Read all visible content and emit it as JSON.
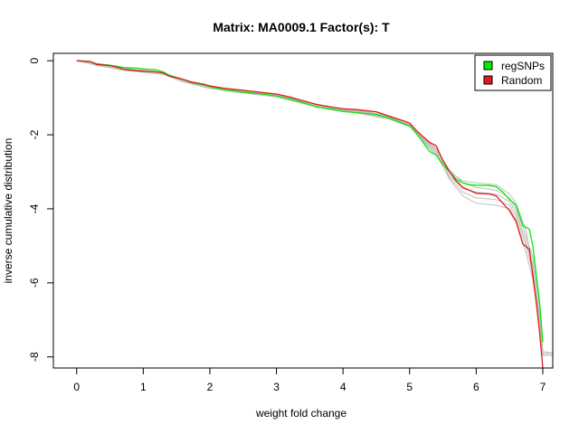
{
  "chart_data": {
    "type": "line",
    "title": "Matrix: MA0009.1 Factor(s): T",
    "xlabel": "weight fold change",
    "ylabel": "inverse cumulative distribution",
    "xlim": [
      -0.35,
      7.15
    ],
    "ylim": [
      -8.3,
      0.2
    ],
    "xticks": [
      "0",
      "1",
      "2",
      "3",
      "4",
      "5",
      "6",
      "7"
    ],
    "yticks": [
      "0",
      "-2",
      "-4",
      "-6",
      "-8"
    ],
    "legend": {
      "position": "top-right",
      "entries": [
        "regSNPs",
        "Random"
      ]
    },
    "colors": {
      "regSNPs": "#00ee00",
      "Random": "#e31a1c",
      "background_runs": "#bebebe"
    },
    "series": [
      {
        "name": "regSNPs",
        "color": "#00ee00",
        "points": [
          [
            0.0,
            0.0
          ],
          [
            0.2,
            -0.02
          ],
          [
            0.3,
            -0.08
          ],
          [
            0.5,
            -0.12
          ],
          [
            0.6,
            -0.15
          ],
          [
            0.7,
            -0.18
          ],
          [
            0.9,
            -0.2
          ],
          [
            1.0,
            -0.22
          ],
          [
            1.2,
            -0.25
          ],
          [
            1.3,
            -0.3
          ],
          [
            1.4,
            -0.4
          ],
          [
            1.6,
            -0.5
          ],
          [
            1.7,
            -0.58
          ],
          [
            1.9,
            -0.65
          ],
          [
            2.0,
            -0.7
          ],
          [
            2.2,
            -0.78
          ],
          [
            2.5,
            -0.85
          ],
          [
            2.8,
            -0.9
          ],
          [
            3.0,
            -0.95
          ],
          [
            3.2,
            -1.03
          ],
          [
            3.4,
            -1.13
          ],
          [
            3.6,
            -1.25
          ],
          [
            3.8,
            -1.3
          ],
          [
            4.0,
            -1.37
          ],
          [
            4.2,
            -1.4
          ],
          [
            4.5,
            -1.45
          ],
          [
            4.7,
            -1.55
          ],
          [
            4.9,
            -1.7
          ],
          [
            5.0,
            -1.75
          ],
          [
            5.1,
            -1.95
          ],
          [
            5.2,
            -2.2
          ],
          [
            5.3,
            -2.45
          ],
          [
            5.4,
            -2.55
          ],
          [
            5.5,
            -2.8
          ],
          [
            5.6,
            -3.0
          ],
          [
            5.7,
            -3.2
          ],
          [
            5.8,
            -3.3
          ],
          [
            5.9,
            -3.35
          ],
          [
            6.0,
            -3.36
          ],
          [
            6.2,
            -3.37
          ],
          [
            6.3,
            -3.4
          ],
          [
            6.4,
            -3.55
          ],
          [
            6.5,
            -3.75
          ],
          [
            6.6,
            -3.9
          ],
          [
            6.7,
            -4.45
          ],
          [
            6.8,
            -4.55
          ],
          [
            6.85,
            -5.0
          ],
          [
            6.9,
            -5.75
          ],
          [
            6.95,
            -6.5
          ],
          [
            7.0,
            -7.6
          ]
        ]
      },
      {
        "name": "Random",
        "color": "#e31a1c",
        "points": [
          [
            0.0,
            0.0
          ],
          [
            0.2,
            -0.02
          ],
          [
            0.3,
            -0.1
          ],
          [
            0.5,
            -0.13
          ],
          [
            0.6,
            -0.17
          ],
          [
            0.7,
            -0.23
          ],
          [
            0.9,
            -0.27
          ],
          [
            1.0,
            -0.28
          ],
          [
            1.2,
            -0.3
          ],
          [
            1.3,
            -0.33
          ],
          [
            1.4,
            -0.42
          ],
          [
            1.6,
            -0.5
          ],
          [
            1.7,
            -0.57
          ],
          [
            1.9,
            -0.63
          ],
          [
            2.0,
            -0.68
          ],
          [
            2.2,
            -0.74
          ],
          [
            2.5,
            -0.8
          ],
          [
            2.8,
            -0.86
          ],
          [
            3.0,
            -0.9
          ],
          [
            3.2,
            -0.98
          ],
          [
            3.4,
            -1.08
          ],
          [
            3.6,
            -1.18
          ],
          [
            3.8,
            -1.24
          ],
          [
            4.0,
            -1.3
          ],
          [
            4.2,
            -1.32
          ],
          [
            4.5,
            -1.38
          ],
          [
            4.7,
            -1.5
          ],
          [
            4.9,
            -1.62
          ],
          [
            5.0,
            -1.68
          ],
          [
            5.1,
            -1.88
          ],
          [
            5.2,
            -2.05
          ],
          [
            5.3,
            -2.2
          ],
          [
            5.4,
            -2.3
          ],
          [
            5.5,
            -2.7
          ],
          [
            5.6,
            -3.0
          ],
          [
            5.7,
            -3.25
          ],
          [
            5.8,
            -3.42
          ],
          [
            5.9,
            -3.5
          ],
          [
            6.0,
            -3.58
          ],
          [
            6.2,
            -3.6
          ],
          [
            6.3,
            -3.65
          ],
          [
            6.4,
            -3.85
          ],
          [
            6.5,
            -4.05
          ],
          [
            6.6,
            -4.35
          ],
          [
            6.7,
            -4.95
          ],
          [
            6.8,
            -5.1
          ],
          [
            6.85,
            -5.8
          ],
          [
            6.9,
            -6.5
          ],
          [
            6.95,
            -7.3
          ],
          [
            7.0,
            -8.3
          ]
        ]
      }
    ],
    "background_runs": [
      [
        [
          0.0,
          0.0
        ],
        [
          0.3,
          -0.07
        ],
        [
          0.7,
          -0.2
        ],
        [
          1.3,
          -0.32
        ],
        [
          1.6,
          -0.52
        ],
        [
          2.0,
          -0.7
        ],
        [
          2.5,
          -0.82
        ],
        [
          3.0,
          -0.93
        ],
        [
          3.4,
          -1.1
        ],
        [
          3.8,
          -1.27
        ],
        [
          4.2,
          -1.35
        ],
        [
          4.7,
          -1.52
        ],
        [
          5.0,
          -1.72
        ],
        [
          5.2,
          -2.1
        ],
        [
          5.4,
          -2.4
        ],
        [
          5.6,
          -3.0
        ],
        [
          5.8,
          -3.25
        ],
        [
          6.0,
          -3.3
        ],
        [
          6.3,
          -3.35
        ],
        [
          6.5,
          -3.6
        ],
        [
          6.6,
          -3.85
        ],
        [
          6.75,
          -4.6
        ],
        [
          6.85,
          -5.6
        ],
        [
          6.95,
          -6.8
        ],
        [
          7.0,
          -7.9
        ],
        [
          7.15,
          -7.9
        ]
      ],
      [
        [
          0.0,
          0.0
        ],
        [
          0.3,
          -0.09
        ],
        [
          0.7,
          -0.22
        ],
        [
          1.3,
          -0.34
        ],
        [
          1.6,
          -0.54
        ],
        [
          2.0,
          -0.72
        ],
        [
          2.5,
          -0.84
        ],
        [
          3.0,
          -0.95
        ],
        [
          3.4,
          -1.12
        ],
        [
          3.8,
          -1.29
        ],
        [
          4.2,
          -1.37
        ],
        [
          4.7,
          -1.54
        ],
        [
          5.0,
          -1.74
        ],
        [
          5.2,
          -2.12
        ],
        [
          5.4,
          -2.45
        ],
        [
          5.6,
          -3.1
        ],
        [
          5.8,
          -3.45
        ],
        [
          6.0,
          -3.55
        ],
        [
          6.3,
          -3.6
        ],
        [
          6.5,
          -3.8
        ],
        [
          6.6,
          -4.1
        ],
        [
          6.75,
          -4.9
        ],
        [
          6.85,
          -5.5
        ],
        [
          6.95,
          -6.9
        ],
        [
          7.0,
          -7.95
        ],
        [
          7.15,
          -7.95
        ]
      ],
      [
        [
          0.0,
          0.0
        ],
        [
          0.3,
          -0.11
        ],
        [
          0.7,
          -0.25
        ],
        [
          1.3,
          -0.36
        ],
        [
          1.6,
          -0.56
        ],
        [
          2.0,
          -0.74
        ],
        [
          2.5,
          -0.86
        ],
        [
          3.0,
          -0.97
        ],
        [
          3.4,
          -1.15
        ],
        [
          3.8,
          -1.31
        ],
        [
          4.2,
          -1.39
        ],
        [
          4.7,
          -1.56
        ],
        [
          5.0,
          -1.76
        ],
        [
          5.2,
          -2.15
        ],
        [
          5.4,
          -2.5
        ],
        [
          5.6,
          -3.2
        ],
        [
          5.8,
          -3.65
        ],
        [
          6.0,
          -3.85
        ],
        [
          6.3,
          -3.9
        ],
        [
          6.5,
          -4.0
        ],
        [
          6.6,
          -4.3
        ],
        [
          6.75,
          -5.2
        ],
        [
          6.85,
          -5.9
        ],
        [
          6.95,
          -7.1
        ],
        [
          7.0,
          -7.95
        ],
        [
          7.15,
          -7.95
        ]
      ],
      [
        [
          0.0,
          0.0
        ],
        [
          0.3,
          -0.1
        ],
        [
          0.7,
          -0.23
        ],
        [
          1.3,
          -0.33
        ],
        [
          1.6,
          -0.5
        ],
        [
          2.0,
          -0.69
        ],
        [
          2.5,
          -0.8
        ],
        [
          3.0,
          -0.91
        ],
        [
          3.4,
          -1.09
        ],
        [
          3.8,
          -1.25
        ],
        [
          4.2,
          -1.33
        ],
        [
          4.7,
          -1.49
        ],
        [
          5.0,
          -1.68
        ],
        [
          5.2,
          -2.08
        ],
        [
          5.4,
          -2.38
        ],
        [
          5.6,
          -2.95
        ],
        [
          5.8,
          -3.3
        ],
        [
          6.0,
          -3.42
        ],
        [
          6.3,
          -3.5
        ],
        [
          6.5,
          -3.7
        ],
        [
          6.6,
          -4.0
        ],
        [
          6.75,
          -4.75
        ],
        [
          6.85,
          -5.3
        ],
        [
          6.95,
          -6.6
        ],
        [
          7.0,
          -7.85
        ],
        [
          7.15,
          -7.9
        ]
      ],
      [
        [
          0.0,
          0.0
        ],
        [
          0.3,
          -0.12
        ],
        [
          0.7,
          -0.26
        ],
        [
          1.3,
          -0.37
        ],
        [
          1.6,
          -0.57
        ],
        [
          2.0,
          -0.75
        ],
        [
          2.5,
          -0.87
        ],
        [
          3.0,
          -0.98
        ],
        [
          3.4,
          -1.16
        ],
        [
          3.8,
          -1.32
        ],
        [
          4.2,
          -1.41
        ],
        [
          4.7,
          -1.58
        ],
        [
          5.0,
          -1.78
        ],
        [
          5.2,
          -2.18
        ],
        [
          5.4,
          -2.55
        ],
        [
          5.6,
          -3.15
        ],
        [
          5.8,
          -3.55
        ],
        [
          6.0,
          -3.7
        ],
        [
          6.3,
          -3.75
        ],
        [
          6.5,
          -3.9
        ],
        [
          6.6,
          -4.2
        ],
        [
          6.75,
          -5.0
        ],
        [
          6.85,
          -5.7
        ],
        [
          6.95,
          -7.0
        ],
        [
          7.0,
          -7.95
        ],
        [
          7.15,
          -7.95
        ]
      ]
    ]
  }
}
